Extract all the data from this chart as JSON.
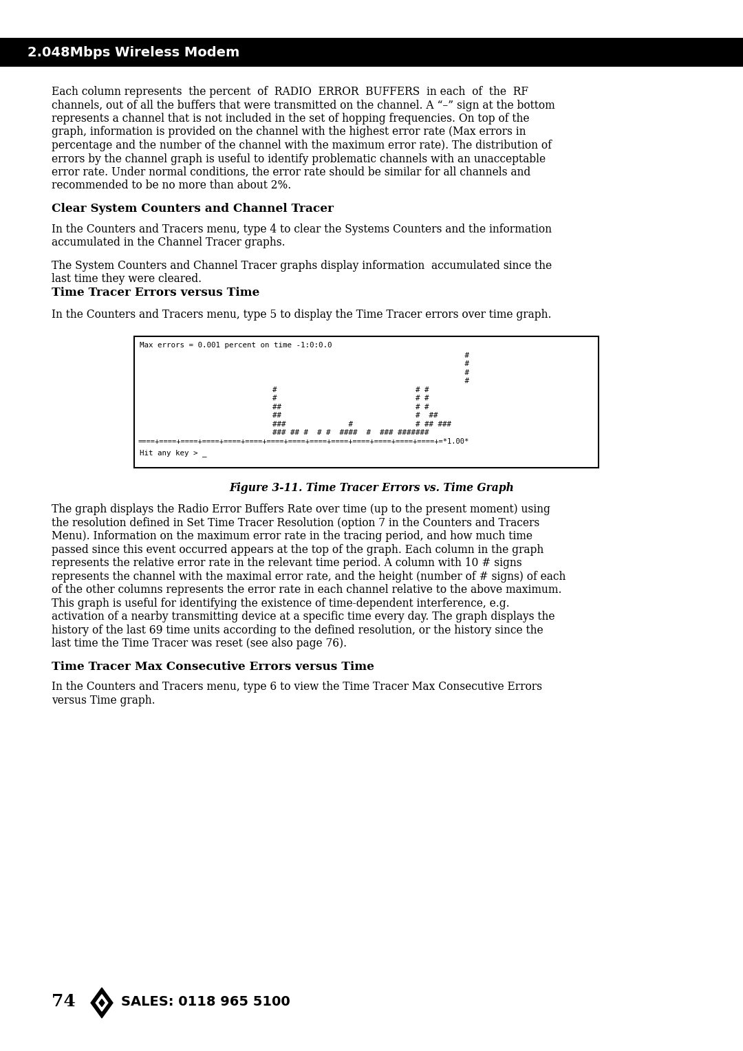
{
  "page_bg": "#ffffff",
  "header_bg": "#000000",
  "header_text": "2.048Mbps Wireless Modem",
  "header_text_color": "#ffffff",
  "body_text_color": "#000000",
  "paragraph1_lines": [
    "Each column represents  the percent  of  RADIO  ERROR  BUFFERS  in each  of  the  RF",
    "channels, out of all the buffers that were transmitted on the channel. A “–” sign at the bottom",
    "represents a channel that is not included in the set of hopping frequencies. On top of the",
    "graph, information is provided on the channel with the highest error rate (Max errors in",
    "percentage and the number of the channel with the maximum error rate). The distribution of",
    "errors by the channel graph is useful to identify problematic channels with an unacceptable",
    "error rate. Under normal conditions, the error rate should be similar for all channels and",
    "recommended to be no more than about 2%."
  ],
  "section_heading1": "Clear System Counters and Channel Tracer",
  "paragraph2_lines": [
    "In the Counters and Tracers menu, type 4 to clear the Systems Counters and the information",
    "accumulated in the Channel Tracer graphs."
  ],
  "paragraph3_lines": [
    "The System Counters and Channel Tracer graphs display information  accumulated since the",
    "last time they were cleared."
  ],
  "bold_heading": "Time Tracer Errors versus Time",
  "paragraph4_lines": [
    "In the Counters and Tracers menu, type 5 to display the Time Tracer errors over time graph."
  ],
  "terminal_header": "Max errors = 0.001 percent on time -1:0:0.0",
  "terminal_content": [
    "                                                                         #",
    "                                                                         #",
    "                                                                         #",
    "                                                                         #",
    "                              #                               # #",
    "                              #                               # #",
    "                              ##                              # #",
    "                              ##                              #  ##",
    "                              ###              #              # ## ###",
    "                              ### ## #  # #  ####  #  ### #######"
  ],
  "terminal_ruler": "====+====+====+====+====+====+====+====+====+====+====+====+====+====+=*1.00*",
  "terminal_footer": "Hit any key > _",
  "figure_caption": "Figure 3-11. Time Tracer Errors vs. Time Graph",
  "paragraph5_lines": [
    "The graph displays the Radio Error Buffers Rate over time (up to the present moment) using",
    "the resolution defined in Set Time Tracer Resolution (option 7 in the Counters and Tracers",
    "Menu). Information on the maximum error rate in the tracing period, and how much time",
    "passed since this event occurred appears at the top of the graph. Each column in the graph",
    "represents the relative error rate in the relevant time period. A column with 10 # signs",
    "represents the channel with the maximal error rate, and the height (number of # signs) of each",
    "of the other columns represents the error rate in each channel relative to the above maximum.",
    "This graph is useful for identifying the existence of time-dependent interference, e.g.",
    "activation of a nearby transmitting device at a specific time every day. The graph displays the",
    "history of the last 69 time units according to the defined resolution, or the history since the",
    "last time the Time Tracer was reset (see also page 76)."
  ],
  "section_heading2": "Time Tracer Max Consecutive Errors versus Time",
  "paragraph6_lines": [
    "In the Counters and Tracers menu, type 6 to view the Time Tracer Max Consecutive Errors",
    "versus Time graph."
  ],
  "page_number": "74",
  "sales_text": "SALES: 0118 965 5100"
}
